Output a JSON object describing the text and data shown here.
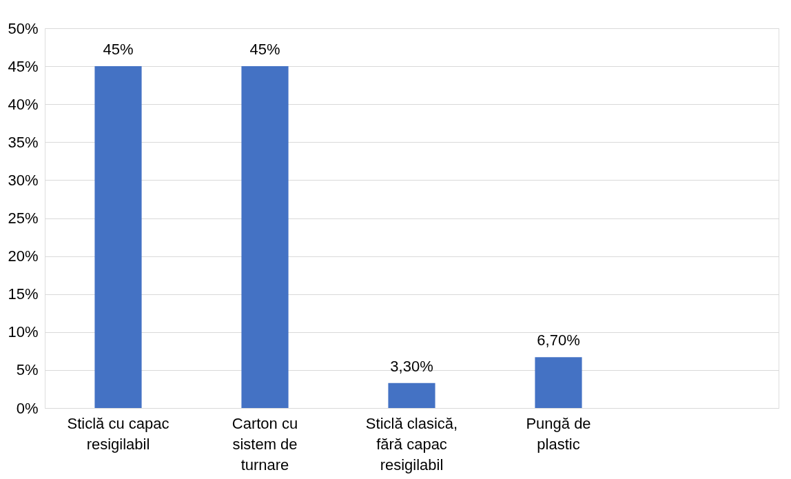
{
  "chart_data": {
    "type": "bar",
    "categories": [
      "Sticlă cu capac resigilabil",
      "Carton cu sistem de turnare",
      "Sticlă clasică, fără capac resigilabil",
      "Pungă de plastic",
      null
    ],
    "values": [
      45,
      45,
      3.3,
      6.7,
      null
    ],
    "value_labels": [
      "45%",
      "45%",
      "3,30%",
      "6,70%",
      null
    ],
    "color": "#4472c4",
    "ylim": [
      0,
      50
    ],
    "yticks": [
      {
        "value": 0,
        "label": "0%"
      },
      {
        "value": 5,
        "label": "5%"
      },
      {
        "value": 10,
        "label": "10%"
      },
      {
        "value": 15,
        "label": "15%"
      },
      {
        "value": 20,
        "label": "20%"
      },
      {
        "value": 25,
        "label": "25%"
      },
      {
        "value": 30,
        "label": "30%"
      },
      {
        "value": 35,
        "label": "35%"
      },
      {
        "value": 40,
        "label": "40%"
      },
      {
        "value": 45,
        "label": "45%"
      },
      {
        "value": 50,
        "label": "50%"
      }
    ],
    "grid": "y"
  }
}
